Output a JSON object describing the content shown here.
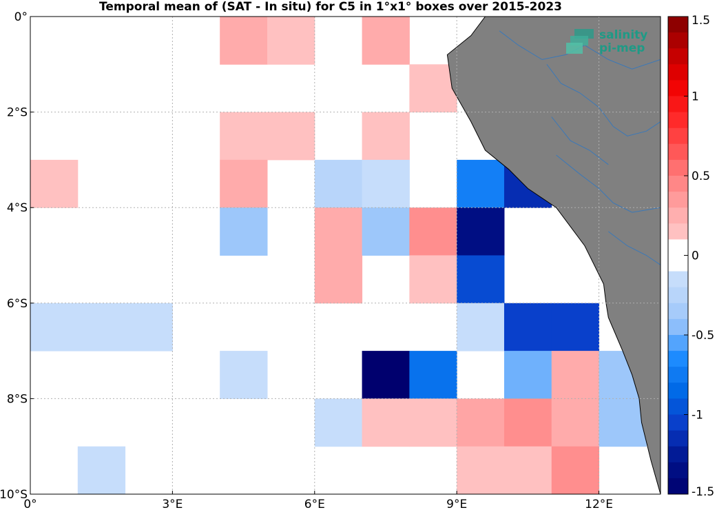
{
  "title": "Temporal mean of (SAT - In situ) for C5 in 1°x1° boxes over 2015-2023",
  "logo": {
    "line1": "salinity",
    "line2": "pi-mep"
  },
  "map": {
    "lon_range": [
      0,
      13.3
    ],
    "lat_range": [
      -10,
      0
    ],
    "grid": true,
    "land_color": "#808080",
    "river_color": "#3a78b8",
    "x_ticks": [
      {
        "value": 0,
        "label": "0°"
      },
      {
        "value": 3,
        "label": "3°E"
      },
      {
        "value": 6,
        "label": "6°E"
      },
      {
        "value": 9,
        "label": "9°E"
      },
      {
        "value": 12,
        "label": "12°E"
      }
    ],
    "y_ticks": [
      {
        "value": 0,
        "label": "0°"
      },
      {
        "value": -2,
        "label": "2°S"
      },
      {
        "value": -4,
        "label": "4°S"
      },
      {
        "value": -6,
        "label": "6°S"
      },
      {
        "value": -8,
        "label": "8°S"
      },
      {
        "value": -10,
        "label": "10°S"
      }
    ],
    "coastline": [
      [
        13.3,
        -10
      ],
      [
        13.1,
        -9.3
      ],
      [
        13.0,
        -8.9
      ],
      [
        12.9,
        -8.5
      ],
      [
        12.85,
        -8.0
      ],
      [
        12.7,
        -7.5
      ],
      [
        12.5,
        -7.0
      ],
      [
        12.2,
        -6.3
      ],
      [
        12.15,
        -6.0
      ],
      [
        12.1,
        -5.6
      ],
      [
        11.9,
        -5.2
      ],
      [
        11.7,
        -4.8
      ],
      [
        11.4,
        -4.4
      ],
      [
        11.1,
        -4.0
      ],
      [
        10.5,
        -3.6
      ],
      [
        10.1,
        -3.2
      ],
      [
        9.6,
        -2.8
      ],
      [
        9.3,
        -2.2
      ],
      [
        8.9,
        -1.5
      ],
      [
        8.8,
        -0.8
      ],
      [
        9.3,
        -0.4
      ],
      [
        9.6,
        0.0
      ],
      [
        13.3,
        0.0
      ]
    ],
    "rivers": [
      [
        [
          10.9,
          -1.0
        ],
        [
          11.2,
          -1.4
        ],
        [
          11.6,
          -1.6
        ],
        [
          12.0,
          -1.9
        ],
        [
          12.3,
          -2.3
        ],
        [
          12.6,
          -2.5
        ],
        [
          13.0,
          -2.4
        ],
        [
          13.3,
          -2.2
        ]
      ],
      [
        [
          9.9,
          -0.3
        ],
        [
          10.3,
          -0.6
        ],
        [
          10.8,
          -0.9
        ],
        [
          11.3,
          -0.8
        ],
        [
          11.7,
          -0.6
        ],
        [
          12.2,
          -0.9
        ],
        [
          12.7,
          -1.1
        ],
        [
          13.3,
          -0.9
        ]
      ],
      [
        [
          11.1,
          -2.9
        ],
        [
          11.6,
          -3.3
        ],
        [
          12.0,
          -3.6
        ],
        [
          12.3,
          -3.9
        ],
        [
          12.7,
          -4.1
        ],
        [
          13.3,
          -4.0
        ]
      ],
      [
        [
          12.2,
          -4.5
        ],
        [
          12.6,
          -4.8
        ],
        [
          13.0,
          -5.0
        ],
        [
          13.3,
          -5.2
        ]
      ],
      [
        [
          11.0,
          -2.1
        ],
        [
          11.4,
          -2.6
        ],
        [
          11.8,
          -2.8
        ],
        [
          12.2,
          -3.1
        ]
      ]
    ],
    "cells": [
      {
        "lon": 4,
        "lat": 0,
        "v": 0.27
      },
      {
        "lon": 5,
        "lat": 0,
        "v": 0.15
      },
      {
        "lon": 7,
        "lat": 0,
        "v": 0.27
      },
      {
        "lon": 8,
        "lat": -1,
        "v": 0.15
      },
      {
        "lon": 4,
        "lat": -2,
        "v": 0.15
      },
      {
        "lon": 5,
        "lat": -2,
        "v": 0.15
      },
      {
        "lon": 7,
        "lat": -2,
        "v": 0.15
      },
      {
        "lon": 0,
        "lat": -3,
        "v": 0.15
      },
      {
        "lon": 4,
        "lat": -3,
        "v": 0.27
      },
      {
        "lon": 6,
        "lat": -3,
        "v": -0.25
      },
      {
        "lon": 7,
        "lat": -3,
        "v": -0.15
      },
      {
        "lon": 9,
        "lat": -3,
        "v": -0.72
      },
      {
        "lon": 10,
        "lat": -3,
        "v": -1.15
      },
      {
        "lon": 4,
        "lat": -4,
        "v": -0.4
      },
      {
        "lon": 6,
        "lat": -4,
        "v": 0.27
      },
      {
        "lon": 7,
        "lat": -4,
        "v": -0.4
      },
      {
        "lon": 8,
        "lat": -4,
        "v": 0.42
      },
      {
        "lon": 9,
        "lat": -4,
        "v": -1.35
      },
      {
        "lon": 6,
        "lat": -5,
        "v": 0.27
      },
      {
        "lon": 8,
        "lat": -5,
        "v": 0.15
      },
      {
        "lon": 9,
        "lat": -5,
        "v": -1.0
      },
      {
        "lon": 0,
        "lat": -6,
        "v": -0.15
      },
      {
        "lon": 1,
        "lat": -6,
        "v": -0.15
      },
      {
        "lon": 2,
        "lat": -6,
        "v": -0.15
      },
      {
        "lon": 9,
        "lat": -6,
        "v": -0.15
      },
      {
        "lon": 10,
        "lat": -6,
        "v": -1.05
      },
      {
        "lon": 11,
        "lat": -6,
        "v": -1.05
      },
      {
        "lon": 4,
        "lat": -7,
        "v": -0.15
      },
      {
        "lon": 7,
        "lat": -7,
        "v": -1.5
      },
      {
        "lon": 8,
        "lat": -7,
        "v": -0.8
      },
      {
        "lon": 10,
        "lat": -7,
        "v": -0.5
      },
      {
        "lon": 11,
        "lat": -7,
        "v": 0.27
      },
      {
        "lon": 12,
        "lat": -7,
        "v": -0.4
      },
      {
        "lon": 6,
        "lat": -8,
        "v": -0.15
      },
      {
        "lon": 7,
        "lat": -8,
        "v": 0.15
      },
      {
        "lon": 8,
        "lat": -8,
        "v": 0.15
      },
      {
        "lon": 9,
        "lat": -8,
        "v": 0.3
      },
      {
        "lon": 10,
        "lat": -8,
        "v": 0.42
      },
      {
        "lon": 11,
        "lat": -8,
        "v": 0.27
      },
      {
        "lon": 12,
        "lat": -8,
        "v": -0.4
      },
      {
        "lon": 1,
        "lat": -9,
        "v": -0.15
      },
      {
        "lon": 9,
        "lat": -9,
        "v": 0.15
      },
      {
        "lon": 10,
        "lat": -9,
        "v": 0.15
      },
      {
        "lon": 11,
        "lat": -9,
        "v": 0.42
      }
    ]
  },
  "colorbar": {
    "range": [
      -1.5,
      1.5
    ],
    "ticks": [
      {
        "value": 1.5,
        "label": "1.5"
      },
      {
        "value": 1,
        "label": "1"
      },
      {
        "value": 0.5,
        "label": "0.5"
      },
      {
        "value": 0,
        "label": "0"
      },
      {
        "value": -0.5,
        "label": "-0.5"
      },
      {
        "value": -1,
        "label": "-1"
      },
      {
        "value": -1.5,
        "label": "-1.5"
      }
    ]
  }
}
